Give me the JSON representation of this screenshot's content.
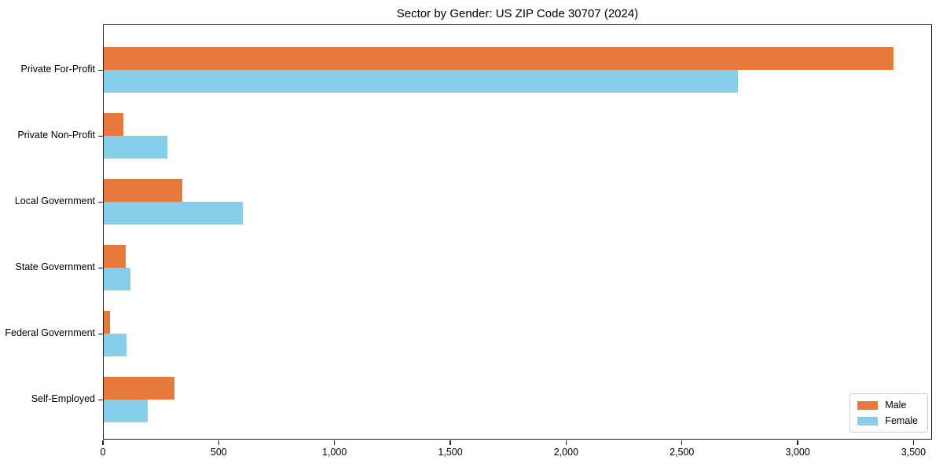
{
  "title": "Sector by Gender: US ZIP Code 30707 (2024)",
  "chart_data": {
    "type": "bar",
    "orientation": "horizontal",
    "title": "Sector by Gender: US ZIP Code 30707 (2024)",
    "categories": [
      "Private For-Profit",
      "Private Non-Profit",
      "Local Government",
      "State Government",
      "Federal Government",
      "Self-Employed"
    ],
    "series": [
      {
        "name": "Male",
        "color": "#e8793c",
        "values": [
          3410,
          85,
          340,
          95,
          27,
          305
        ]
      },
      {
        "name": "Female",
        "color": "#87ceeb",
        "values": [
          2740,
          275,
          600,
          115,
          98,
          190
        ]
      }
    ],
    "xlabel": "",
    "ylabel": "",
    "xlim": [
      0,
      3580
    ],
    "xticks": [
      0,
      500,
      1000,
      1500,
      2000,
      2500,
      3000,
      3500
    ],
    "xtick_labels": [
      "0",
      "500",
      "1,000",
      "1,500",
      "2,000",
      "2,500",
      "3,000",
      "3,500"
    ],
    "grid": false,
    "legend_position": "lower right"
  }
}
